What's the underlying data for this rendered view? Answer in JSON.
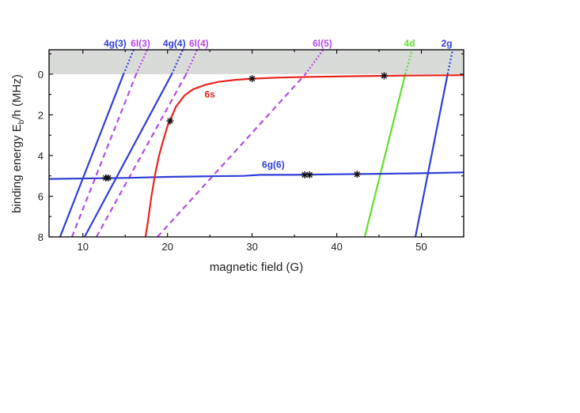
{
  "chart_data": {
    "type": "line",
    "xlabel": "magnetic field (G)",
    "ylabel": "binding energy E",
    "ylabel_sub": "b",
    "ylabel_rest": "/h (MHz)",
    "xlim": [
      6,
      55
    ],
    "ylim": [
      -1.2,
      8
    ],
    "y_inverted": true,
    "x_ticks": [
      10,
      20,
      30,
      40,
      50
    ],
    "y_ticks": [
      0,
      2,
      4,
      6,
      8
    ],
    "grid": false,
    "shaded_region": {
      "y_from": -1.2,
      "y_to": 0,
      "color": "#d9dbd9"
    },
    "colors": {
      "blue": "#2f3fd6",
      "violet": "#b44be6",
      "red": "#e8231e",
      "green": "#5fe02a"
    },
    "lines": [
      {
        "label": "4g(3)",
        "color": "blue",
        "style": "solid",
        "points": [
          [
            7.3,
            8
          ],
          [
            14.8,
            0
          ]
        ],
        "dotted_ext": [
          [
            14.8,
            0
          ],
          [
            16.0,
            -1.2
          ]
        ]
      },
      {
        "label": "6l(3)",
        "color": "violet",
        "style": "dashed",
        "points": [
          [
            8.7,
            8
          ],
          [
            16.3,
            0
          ]
        ],
        "dotted_ext": [
          [
            16.3,
            0
          ],
          [
            17.6,
            -1.2
          ]
        ]
      },
      {
        "label": "4g(4)",
        "color": "blue",
        "style": "solid",
        "points": [
          [
            10.2,
            8
          ],
          [
            20.5,
            0
          ]
        ],
        "dotted_ext": [
          [
            20.5,
            0
          ],
          [
            21.8,
            -1.2
          ]
        ]
      },
      {
        "label": "6l(4)",
        "color": "violet",
        "style": "dashed",
        "points": [
          [
            11.6,
            8
          ],
          [
            22.2,
            0
          ]
        ],
        "dotted_ext": [
          [
            22.2,
            0
          ],
          [
            23.5,
            -1.2
          ]
        ]
      },
      {
        "label": "6l(5)",
        "color": "violet",
        "style": "dashed",
        "points": [
          [
            18.8,
            8
          ],
          [
            36.3,
            0
          ]
        ],
        "dotted_ext": [
          [
            36.3,
            0
          ],
          [
            38.4,
            -1.2
          ]
        ]
      },
      {
        "label": "4d",
        "color": "green",
        "style": "solid",
        "points": [
          [
            43.3,
            8
          ],
          [
            48.1,
            0
          ]
        ],
        "dotted_ext": [
          [
            48.1,
            0
          ],
          [
            48.9,
            -1.2
          ]
        ]
      },
      {
        "label": "2g",
        "color": "blue",
        "style": "solid",
        "points": [
          [
            49.3,
            8
          ],
          [
            53.1,
            0
          ]
        ],
        "dotted_ext": [
          [
            53.1,
            0
          ],
          [
            53.7,
            -1.2
          ]
        ]
      },
      {
        "label": "6g(6)",
        "color": "blue",
        "style": "solid",
        "points": [
          [
            6,
            5.15
          ],
          [
            15,
            5.1
          ],
          [
            20,
            5.05
          ],
          [
            25,
            5.02
          ],
          [
            29,
            5.0
          ],
          [
            31,
            4.95
          ],
          [
            35,
            4.95
          ],
          [
            40,
            4.92
          ],
          [
            45,
            4.9
          ],
          [
            50,
            4.87
          ],
          [
            55,
            4.83
          ]
        ]
      },
      {
        "label": "6s",
        "color": "red",
        "style": "solid",
        "points": [
          [
            17.4,
            8
          ],
          [
            17.7,
            7.2
          ],
          [
            18.1,
            6.0
          ],
          [
            18.5,
            5.0
          ],
          [
            19.0,
            4.0
          ],
          [
            19.5,
            3.25
          ],
          [
            20.0,
            2.55
          ],
          [
            21.0,
            1.6
          ],
          [
            22.0,
            1.05
          ],
          [
            23.0,
            0.75
          ],
          [
            24.5,
            0.52
          ],
          [
            26.0,
            0.38
          ],
          [
            28.0,
            0.28
          ],
          [
            30.0,
            0.22
          ],
          [
            33.0,
            0.17
          ],
          [
            37.0,
            0.13
          ],
          [
            42.0,
            0.1
          ],
          [
            48.0,
            0.07
          ],
          [
            55.0,
            0.05
          ]
        ]
      }
    ],
    "line_labels": [
      {
        "text": "4g(3)",
        "color": "blue",
        "x": 13.8,
        "y": -1.35
      },
      {
        "text": "6l(3)",
        "color": "violet",
        "x": 16.8,
        "y": -1.35
      },
      {
        "text": "4g(4)",
        "color": "blue",
        "x": 20.8,
        "y": -1.35
      },
      {
        "text": "6l(4)",
        "color": "violet",
        "x": 23.7,
        "y": -1.35
      },
      {
        "text": "6l(5)",
        "color": "violet",
        "x": 38.3,
        "y": -1.35
      },
      {
        "text": "4d",
        "color": "green",
        "x": 48.6,
        "y": -1.35
      },
      {
        "text": "2g",
        "color": "blue",
        "x": 53.0,
        "y": -1.35
      },
      {
        "text": "6s",
        "color": "red",
        "x": 25.0,
        "y": 1.15
      },
      {
        "text": "6g(6)",
        "color": "blue",
        "x": 32.5,
        "y": 4.6
      }
    ],
    "markers": [
      {
        "x": 12.7,
        "y": 5.1
      },
      {
        "x": 13.0,
        "y": 5.1
      },
      {
        "x": 20.3,
        "y": 2.3
      },
      {
        "x": 30.0,
        "y": 0.22
      },
      {
        "x": 36.2,
        "y": 4.95
      },
      {
        "x": 36.8,
        "y": 4.95
      },
      {
        "x": 42.4,
        "y": 4.92
      },
      {
        "x": 45.6,
        "y": 0.08
      }
    ]
  }
}
